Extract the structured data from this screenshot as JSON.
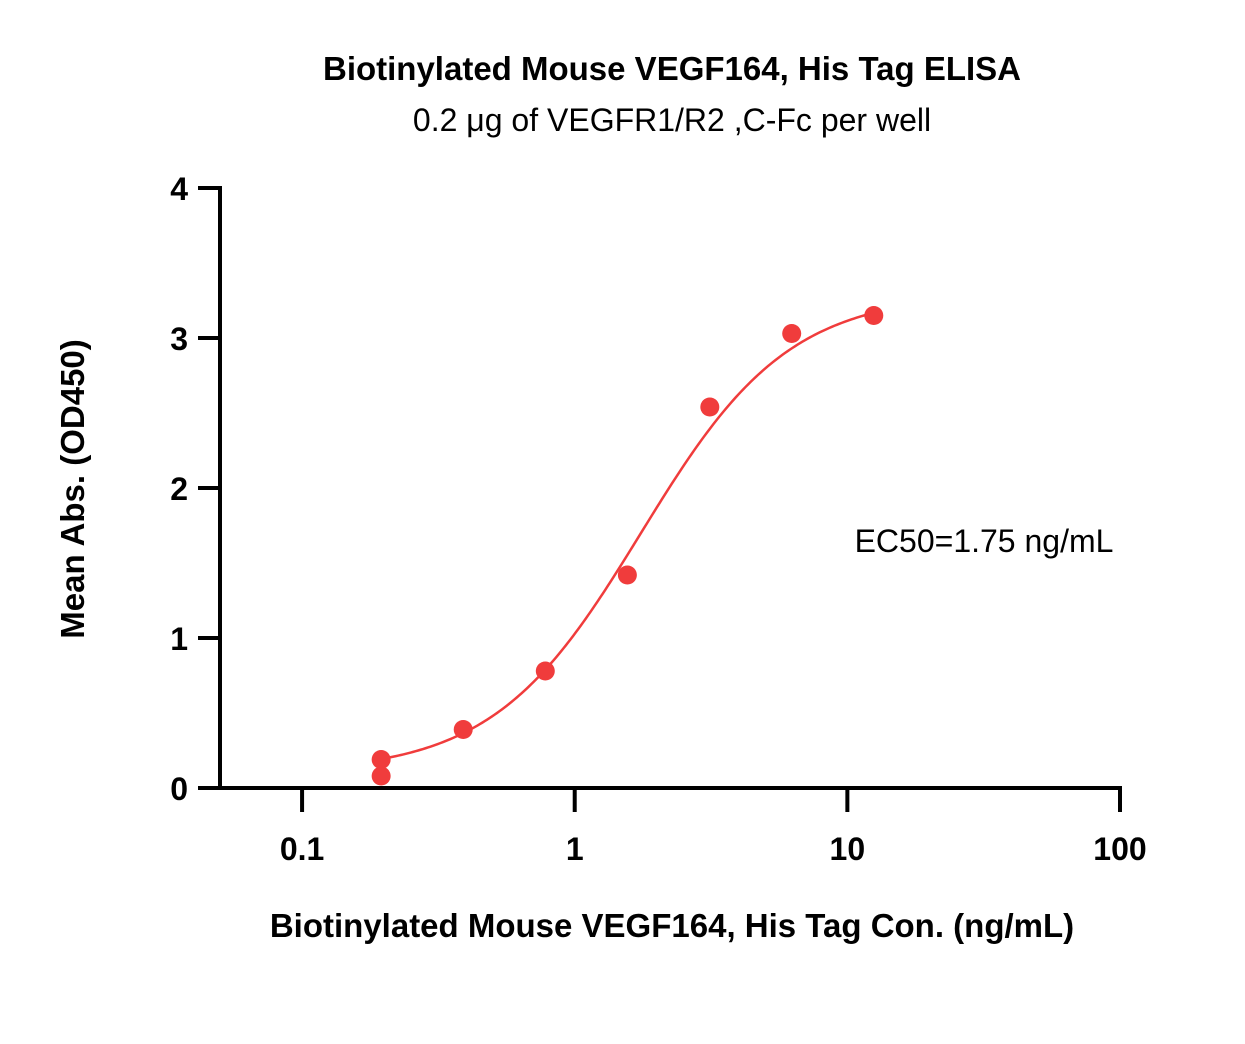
{
  "chart_data": {
    "type": "scatter",
    "title": "Biotinylated Mouse VEGF164, His Tag ELISA",
    "subtitle": "0.2 μg of VEGFR1/R2 ,C-Fc per well",
    "xlabel": "Biotinylated Mouse VEGF164, His Tag Con. (ng/mL)",
    "ylabel": "Mean Abs. (OD450)",
    "xscale": "log",
    "xlim": [
      0.05,
      100
    ],
    "ylim": [
      0,
      4
    ],
    "x_ticks": [
      {
        "value": 0.1,
        "label": "0.1"
      },
      {
        "value": 1,
        "label": "1"
      },
      {
        "value": 10,
        "label": "10"
      },
      {
        "value": 100,
        "label": "100"
      }
    ],
    "y_ticks": [
      {
        "value": 0,
        "label": "0"
      },
      {
        "value": 1,
        "label": "1"
      },
      {
        "value": 2,
        "label": "2"
      },
      {
        "value": 3,
        "label": "3"
      },
      {
        "value": 4,
        "label": "4"
      }
    ],
    "grid": false,
    "series": [
      {
        "color": "#f03c3c",
        "points": [
          {
            "x": 0.195,
            "y": 0.19
          },
          {
            "x": 0.195,
            "y": 0.08
          },
          {
            "x": 0.39,
            "y": 0.39
          },
          {
            "x": 0.78,
            "y": 0.78
          },
          {
            "x": 1.56,
            "y": 1.42
          },
          {
            "x": 3.13,
            "y": 2.54
          },
          {
            "x": 6.25,
            "y": 3.03
          },
          {
            "x": 12.5,
            "y": 3.15
          }
        ],
        "fit": {
          "model": "4PL",
          "bottom": 0.1,
          "top": 3.3,
          "ec50": 1.75,
          "hill": 1.6,
          "x_range": [
            0.195,
            12.5
          ]
        }
      }
    ],
    "annotations": [
      {
        "text": "EC50=1.75 ng/mL"
      }
    ]
  }
}
